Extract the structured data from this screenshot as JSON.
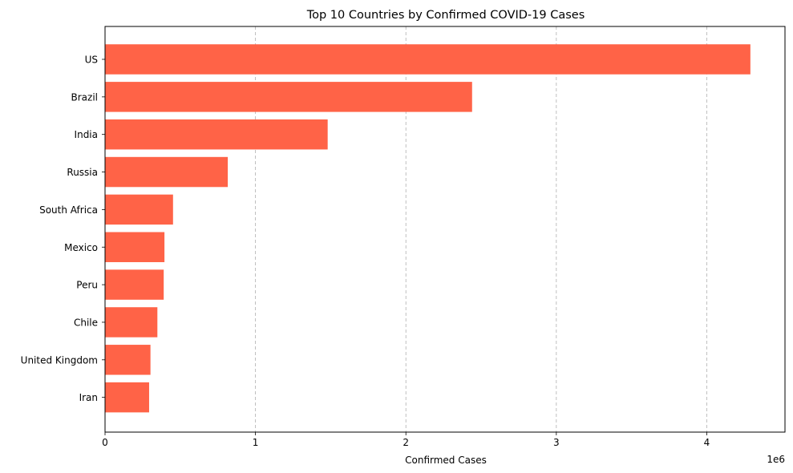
{
  "chart_data": {
    "type": "bar",
    "orientation": "horizontal",
    "title": "Top 10 Countries by Confirmed COVID-19 Cases",
    "xlabel": "Confirmed Cases",
    "ylabel": "",
    "x_offset_label": "1e6",
    "x_scale_factor": 1000000,
    "xlim": [
      0,
      4520000
    ],
    "xticks": [
      0,
      1000000,
      2000000,
      3000000,
      4000000
    ],
    "xtick_labels": [
      "0",
      "1",
      "2",
      "3",
      "4"
    ],
    "grid": "x-axis dashed",
    "categories": [
      "US",
      "Brazil",
      "India",
      "Russia",
      "South Africa",
      "Mexico",
      "Peru",
      "Chile",
      "United Kingdom",
      "Iran"
    ],
    "values": [
      4290000,
      2440000,
      1480000,
      816000,
      452000,
      395000,
      390000,
      348000,
      302000,
      293000
    ],
    "bar_color": "#ff6347"
  }
}
